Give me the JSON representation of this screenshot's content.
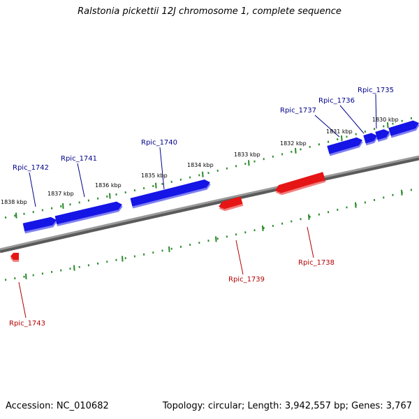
{
  "title": "Ralstonia pickettii 12J chromosome 1, complete sequence",
  "footer": {
    "accession": "Accession: NC_010682",
    "summary": "Topology: circular; Length: 3,942,557 bp; Genes: 3,767"
  },
  "colors": {
    "forward_gene": "#1515e6",
    "reverse_gene": "#e61515",
    "backbone": "#808080",
    "ticks": "#2a8a2a",
    "forward_label": "#00008b",
    "reverse_label": "#b00000"
  },
  "ticks": {
    "labels": [
      "1830 kbp",
      "1831 kbp",
      "1832 kbp",
      "1833 kbp",
      "1834 kbp",
      "1835 kbp",
      "1836 kbp",
      "1837 kbp",
      "1838 kbp"
    ]
  },
  "genes": {
    "forward": [
      {
        "name": "Rpic_1735"
      },
      {
        "name": "Rpic_1736"
      },
      {
        "name": "Rpic_1737"
      },
      {
        "name": "Rpic_1740"
      },
      {
        "name": "Rpic_1741"
      },
      {
        "name": "Rpic_1742"
      }
    ],
    "reverse": [
      {
        "name": "Rpic_1738"
      },
      {
        "name": "Rpic_1739"
      },
      {
        "name": "Rpic_1743"
      }
    ]
  }
}
